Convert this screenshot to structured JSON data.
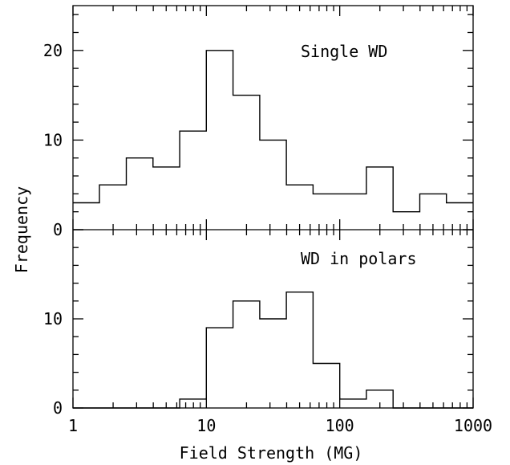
{
  "chart_data": [
    {
      "type": "histogram",
      "panel": "top",
      "annotation": "Single WD",
      "xscale": "log",
      "xlim": [
        1,
        1000
      ],
      "ylim": [
        0,
        25
      ],
      "yticks": [
        0,
        10,
        20
      ],
      "bins": [
        {
          "x0": 1.0,
          "x1": 1.58,
          "value": 3
        },
        {
          "x0": 1.58,
          "x1": 2.51,
          "value": 5
        },
        {
          "x0": 2.51,
          "x1": 3.98,
          "value": 8
        },
        {
          "x0": 3.98,
          "x1": 6.31,
          "value": 7
        },
        {
          "x0": 6.31,
          "x1": 10.0,
          "value": 11
        },
        {
          "x0": 10.0,
          "x1": 15.85,
          "value": 20
        },
        {
          "x0": 15.85,
          "x1": 25.12,
          "value": 15
        },
        {
          "x0": 25.12,
          "x1": 39.81,
          "value": 10
        },
        {
          "x0": 39.81,
          "x1": 63.1,
          "value": 5
        },
        {
          "x0": 63.1,
          "x1": 100.0,
          "value": 4
        },
        {
          "x0": 100.0,
          "x1": 158.5,
          "value": 4
        },
        {
          "x0": 158.5,
          "x1": 251.2,
          "value": 7
        },
        {
          "x0": 251.2,
          "x1": 398.1,
          "value": 2
        },
        {
          "x0": 398.1,
          "x1": 631.0,
          "value": 4
        },
        {
          "x0": 631.0,
          "x1": 1000.0,
          "value": 3
        }
      ]
    },
    {
      "type": "histogram",
      "panel": "bottom",
      "annotation": "WD in polars",
      "xscale": "log",
      "xlim": [
        1,
        1000
      ],
      "ylim": [
        0,
        20
      ],
      "yticks": [
        0,
        10
      ],
      "bins": [
        {
          "x0": 1.0,
          "x1": 1.58,
          "value": 0
        },
        {
          "x0": 1.58,
          "x1": 2.51,
          "value": 0
        },
        {
          "x0": 2.51,
          "x1": 3.98,
          "value": 0
        },
        {
          "x0": 3.98,
          "x1": 6.31,
          "value": 0
        },
        {
          "x0": 6.31,
          "x1": 10.0,
          "value": 1
        },
        {
          "x0": 10.0,
          "x1": 15.85,
          "value": 9
        },
        {
          "x0": 15.85,
          "x1": 25.12,
          "value": 12
        },
        {
          "x0": 25.12,
          "x1": 39.81,
          "value": 10
        },
        {
          "x0": 39.81,
          "x1": 63.1,
          "value": 13
        },
        {
          "x0": 63.1,
          "x1": 100.0,
          "value": 5
        },
        {
          "x0": 100.0,
          "x1": 158.5,
          "value": 1
        },
        {
          "x0": 158.5,
          "x1": 251.2,
          "value": 2
        },
        {
          "x0": 251.2,
          "x1": 398.1,
          "value": 0
        },
        {
          "x0": 398.1,
          "x1": 631.0,
          "value": 0
        },
        {
          "x0": 631.0,
          "x1": 1000.0,
          "value": 0
        }
      ]
    }
  ],
  "axes": {
    "xlabel": "Field Strength (MG)",
    "ylabel": "Frequency",
    "xtick_labels": [
      {
        "value": 1,
        "label": "1"
      },
      {
        "value": 10,
        "label": "10"
      },
      {
        "value": 100,
        "label": "100"
      },
      {
        "value": 1000,
        "label": "1000"
      }
    ],
    "top_ytick_labels": [
      {
        "value": 0,
        "label": "0"
      },
      {
        "value": 10,
        "label": "10"
      },
      {
        "value": 20,
        "label": "20"
      }
    ],
    "bottom_ytick_labels": [
      {
        "value": 0,
        "label": "0"
      },
      {
        "value": 10,
        "label": "10"
      }
    ]
  }
}
